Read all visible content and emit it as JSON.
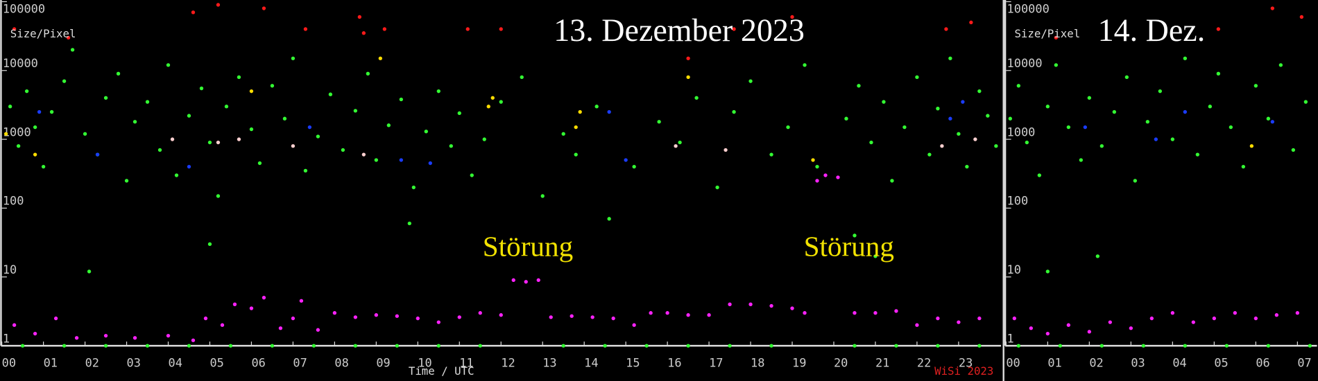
{
  "chart_data": [
    {
      "type": "scatter",
      "title": "13. Dezember 2023",
      "y_label": "Size/Pixel",
      "x_label": "Time / UTC",
      "credit": "WiSi 2023",
      "annotations": [
        "Störung",
        "Störung"
      ],
      "log_y": true,
      "grid": false,
      "xlim": [
        0,
        24
      ],
      "ylim": [
        1,
        100000
      ],
      "yticks": [
        1,
        10,
        100,
        1000,
        10000,
        100000
      ],
      "xticks": [
        {
          "value": 0,
          "label": "00"
        },
        {
          "value": 1,
          "label": "01"
        },
        {
          "value": 2,
          "label": "02"
        },
        {
          "value": 3,
          "label": "03"
        },
        {
          "value": 4,
          "label": "04"
        },
        {
          "value": 5,
          "label": "05"
        },
        {
          "value": 6,
          "label": "06"
        },
        {
          "value": 7,
          "label": "07"
        },
        {
          "value": 8,
          "label": "08"
        },
        {
          "value": 9,
          "label": "09"
        },
        {
          "value": 10,
          "label": "10"
        },
        {
          "value": 11,
          "label": "11"
        },
        {
          "value": 12,
          "label": "12"
        },
        {
          "value": 13,
          "label": "13"
        },
        {
          "value": 14,
          "label": "14"
        },
        {
          "value": 15,
          "label": "15"
        },
        {
          "value": 16,
          "label": "16"
        },
        {
          "value": 17,
          "label": "17"
        },
        {
          "value": 18,
          "label": "18"
        },
        {
          "value": 19,
          "label": "19"
        },
        {
          "value": 20,
          "label": "20"
        },
        {
          "value": 21,
          "label": "21"
        },
        {
          "value": 22,
          "label": "22"
        },
        {
          "value": 23,
          "label": "23"
        }
      ],
      "series": [
        {
          "color": "#33ff33",
          "x": [
            0.2,
            0.4,
            0.6,
            0.8,
            1.0,
            1.2,
            1.5,
            1.7,
            2.0,
            2.3,
            2.5,
            2.8,
            3.0,
            3.2,
            3.5,
            3.8,
            4.0,
            4.2,
            4.5,
            4.8,
            5.0,
            5.2,
            5.4,
            5.7,
            6.0,
            6.2,
            6.5,
            6.8,
            7.0,
            7.3,
            7.6,
            7.9,
            8.2,
            8.5,
            8.8,
            9.0,
            9.3,
            9.6,
            9.9,
            10.2,
            10.5,
            10.8,
            11.0,
            11.3,
            11.6,
            12.0,
            12.5,
            13.0,
            13.5,
            13.8,
            14.3,
            14.6,
            15.2,
            15.8,
            16.3,
            16.7,
            17.2,
            17.6,
            18.0,
            18.5,
            18.9,
            19.3,
            19.6,
            20.3,
            20.6,
            20.9,
            21.2,
            21.4,
            21.7,
            22.0,
            22.3,
            22.5,
            22.8,
            23.0,
            23.2,
            23.5,
            23.7,
            23.9,
            2.1,
            5.0,
            9.8,
            20.5,
            21.0
          ],
          "values": [
            3000,
            800,
            5000,
            1500,
            400,
            2500,
            7000,
            20000,
            1200,
            600,
            4000,
            9000,
            250,
            1800,
            3500,
            700,
            12000,
            300,
            2200,
            5500,
            900,
            150,
            3000,
            8000,
            1400,
            450,
            6000,
            2000,
            15000,
            350,
            1100,
            4500,
            700,
            2600,
            9000,
            500,
            1600,
            3800,
            200,
            1300,
            5000,
            800,
            2400,
            300,
            1000,
            3500,
            8000,
            150,
            1200,
            600,
            3000,
            70,
            400,
            1800,
            900,
            4000,
            200,
            2500,
            7000,
            600,
            1500,
            12000,
            400,
            2000,
            6000,
            900,
            3500,
            250,
            1500,
            8000,
            600,
            2800,
            15000,
            1200,
            400,
            5000,
            2200,
            800,
            12,
            30,
            60,
            40,
            20
          ]
        },
        {
          "color": "#33ff33",
          "x": [
            0.5,
            1.5,
            2.5,
            3.5,
            4.5,
            5.5,
            6.5,
            7.5,
            8.5,
            9.5,
            10.5,
            11.5,
            13.5,
            14.5,
            15.5,
            16.5,
            17.5,
            18.5,
            20.5,
            21.5,
            22.5,
            23.5
          ],
          "values": [
            1,
            1,
            1,
            1,
            1,
            1,
            1,
            1,
            1,
            1,
            1,
            1,
            1,
            1,
            1,
            1,
            1,
            1,
            1,
            1,
            1,
            1
          ]
        },
        {
          "color": "#ff22ff",
          "x": [
            0.3,
            0.8,
            1.3,
            1.8,
            2.5,
            3.2,
            4.0,
            4.6,
            4.9,
            5.3,
            5.6,
            6.0,
            6.3,
            6.7,
            7.0,
            7.2,
            7.6,
            8.0,
            8.5,
            9.0,
            9.5,
            10.0,
            10.5,
            11.0,
            11.5,
            12.0,
            12.3,
            12.6,
            12.9,
            13.2,
            13.7,
            14.2,
            14.7,
            15.2,
            15.6,
            16.0,
            16.5,
            17.0,
            17.5,
            18.0,
            18.5,
            19.0,
            19.3,
            19.6,
            19.8,
            20.1,
            20.5,
            21.0,
            21.5,
            22.0,
            22.5,
            23.0,
            23.5
          ],
          "values": [
            2,
            1.5,
            2.5,
            1.3,
            1.4,
            1.3,
            1.4,
            1.2,
            2.5,
            2,
            4,
            3.5,
            5,
            1.8,
            2.5,
            4.5,
            1.7,
            3,
            2.6,
            2.8,
            2.7,
            2.5,
            2.2,
            2.6,
            3,
            2.8,
            9,
            8.5,
            9,
            2.6,
            2.7,
            2.6,
            2.5,
            2,
            3,
            3,
            2.8,
            2.8,
            4,
            4,
            3.8,
            3.5,
            3,
            250,
            300,
            280,
            3,
            3,
            3.2,
            2,
            2.5,
            2.2,
            2.5
          ]
        },
        {
          "color": "#ff1a1a",
          "x": [
            0.3,
            1.6,
            4.6,
            5.2,
            6.3,
            7.3,
            8.6,
            8.7,
            9.2,
            11.2,
            12.0,
            16.5,
            17.6,
            19.0,
            22.7,
            23.3
          ],
          "values": [
            40000,
            30000,
            70000,
            90000,
            80000,
            40000,
            60000,
            35000,
            40000,
            40000,
            40000,
            15000,
            40000,
            60000,
            40000,
            50000
          ]
        },
        {
          "color": "#ffdd00",
          "x": [
            0.1,
            0.8,
            6.0,
            9.1,
            11.7,
            11.8,
            13.9,
            13.8,
            16.5,
            19.5
          ],
          "values": [
            1200,
            600,
            5000,
            15000,
            3000,
            4000,
            2500,
            1500,
            8000,
            500
          ]
        },
        {
          "color": "#1a3cff",
          "x": [
            0.9,
            2.3,
            4.5,
            7.4,
            9.6,
            10.3,
            14.6,
            15.0,
            22.8,
            23.1
          ],
          "values": [
            2500,
            600,
            400,
            1500,
            500,
            450,
            2500,
            500,
            2000,
            3500
          ]
        },
        {
          "color": "#ffd0d0",
          "x": [
            4.1,
            5.2,
            5.7,
            7.0,
            8.7,
            16.2,
            17.4,
            22.6,
            23.4
          ],
          "values": [
            1000,
            900,
            1000,
            800,
            600,
            800,
            700,
            800,
            1000
          ]
        }
      ]
    },
    {
      "type": "scatter",
      "title": "14. Dez.",
      "y_label": "Size/Pixel",
      "log_y": true,
      "grid": false,
      "xlim": [
        0,
        7.45
      ],
      "ylim": [
        1,
        100000
      ],
      "yticks": [
        1,
        10,
        100,
        1000,
        10000,
        100000
      ],
      "xticks": [
        {
          "value": 0,
          "label": "00"
        },
        {
          "value": 1,
          "label": "01"
        },
        {
          "value": 2,
          "label": "02"
        },
        {
          "value": 3,
          "label": "03"
        },
        {
          "value": 4,
          "label": "04"
        },
        {
          "value": 5,
          "label": "05"
        },
        {
          "value": 6,
          "label": "06"
        },
        {
          "value": 7,
          "label": "07"
        }
      ],
      "series": [
        {
          "color": "#33ff33",
          "x": [
            0.1,
            0.3,
            0.5,
            0.8,
            1.0,
            1.2,
            1.5,
            1.8,
            2.0,
            2.3,
            2.6,
            2.9,
            3.1,
            3.4,
            3.7,
            4.0,
            4.3,
            4.6,
            4.9,
            5.1,
            5.4,
            5.7,
            6.0,
            6.3,
            6.6,
            6.9,
            7.2,
            2.2,
            1.0
          ],
          "values": [
            2000,
            6000,
            900,
            300,
            3000,
            12000,
            1500,
            500,
            4000,
            800,
            2500,
            8000,
            250,
            1800,
            5000,
            1000,
            15000,
            600,
            3000,
            9000,
            1500,
            400,
            6000,
            2000,
            12000,
            700,
            3500,
            20,
            12
          ]
        },
        {
          "color": "#33ff33",
          "x": [
            0.3,
            1.3,
            2.3,
            3.3,
            4.3,
            5.3,
            6.3,
            7.3
          ],
          "values": [
            1,
            1,
            1,
            1,
            1,
            1,
            1,
            1
          ]
        },
        {
          "color": "#ff22ff",
          "x": [
            0.2,
            0.6,
            1.0,
            1.5,
            2.0,
            2.5,
            3.0,
            3.5,
            4.0,
            4.5,
            5.0,
            5.5,
            6.0,
            6.5,
            7.0
          ],
          "values": [
            2.5,
            1.8,
            1.5,
            2,
            1.6,
            2.2,
            1.8,
            2.5,
            3,
            2.2,
            2.5,
            3,
            2.5,
            2.8,
            3
          ]
        },
        {
          "color": "#ff1a1a",
          "x": [
            1.2,
            5.1,
            6.4,
            7.1
          ],
          "values": [
            30000,
            40000,
            80000,
            60000
          ]
        },
        {
          "color": "#1a3cff",
          "x": [
            1.9,
            3.6,
            4.3,
            6.4
          ],
          "values": [
            1500,
            1000,
            2500,
            1800
          ]
        },
        {
          "color": "#ffdd00",
          "x": [
            5.9
          ],
          "values": [
            800
          ]
        }
      ]
    }
  ]
}
